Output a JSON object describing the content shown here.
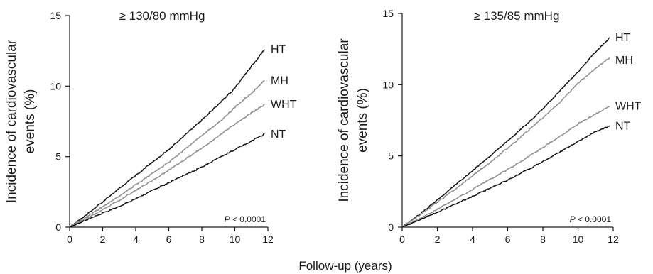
{
  "figure": {
    "xlabel": "Follow-up (years)"
  },
  "chart_data": [
    {
      "type": "line",
      "title": "≥ 130/80 mmHg",
      "ylabel_lines": [
        "Incidence of cardiovascular",
        "events (%)"
      ],
      "xlim": [
        0,
        12
      ],
      "ylim": [
        0,
        15
      ],
      "xticks": [
        0,
        2,
        4,
        6,
        8,
        10,
        12
      ],
      "yticks": [
        0,
        5,
        10,
        15
      ],
      "grid": false,
      "annotation": {
        "prefix": "P",
        "rest": " < 0.0001"
      },
      "series": [
        {
          "name": "HT",
          "color": "#111111",
          "x": [
            0,
            1,
            2,
            3,
            4,
            5,
            6,
            7,
            8,
            9,
            10,
            11,
            11.8
          ],
          "y": [
            0,
            0.85,
            1.8,
            2.75,
            3.65,
            4.6,
            5.5,
            6.55,
            7.6,
            8.7,
            9.85,
            11.4,
            12.6
          ]
        },
        {
          "name": "MH",
          "color": "#8c8c8c",
          "x": [
            0,
            1,
            2,
            3,
            4,
            5,
            6,
            7,
            8,
            9,
            10,
            11,
            11.8
          ],
          "y": [
            0,
            0.7,
            1.45,
            2.2,
            3.0,
            3.8,
            4.6,
            5.55,
            6.5,
            7.4,
            8.5,
            9.5,
            10.4
          ]
        },
        {
          "name": "WHT",
          "color": "#8c8c8c",
          "x": [
            0,
            1,
            2,
            3,
            4,
            5,
            6,
            7,
            8,
            9,
            10,
            11,
            11.8
          ],
          "y": [
            0,
            0.6,
            1.25,
            1.9,
            2.6,
            3.3,
            4.05,
            4.8,
            5.6,
            6.45,
            7.3,
            8.1,
            8.7
          ]
        },
        {
          "name": "NT",
          "color": "#111111",
          "x": [
            0,
            1,
            2,
            3,
            4,
            5,
            6,
            7,
            8,
            9,
            10,
            11,
            11.8
          ],
          "y": [
            0,
            0.5,
            1.0,
            1.45,
            2.0,
            2.6,
            3.15,
            3.7,
            4.25,
            4.9,
            5.5,
            6.1,
            6.6
          ]
        }
      ]
    },
    {
      "type": "line",
      "title": "≥ 135/85 mmHg",
      "ylabel_lines": [
        "Incidence of cardiovascular",
        "events (%)"
      ],
      "xlim": [
        0,
        12
      ],
      "ylim": [
        0,
        15
      ],
      "xticks": [
        0,
        2,
        4,
        6,
        8,
        10,
        12
      ],
      "yticks": [
        0,
        5,
        10,
        15
      ],
      "grid": false,
      "annotation": {
        "prefix": "P",
        "rest": " < 0.0001"
      },
      "series": [
        {
          "name": "HT",
          "color": "#111111",
          "x": [
            0,
            1,
            2,
            3,
            4,
            5,
            6,
            7,
            8,
            9,
            10,
            11,
            11.8
          ],
          "y": [
            0,
            0.9,
            1.9,
            2.95,
            3.95,
            5.0,
            6.05,
            7.15,
            8.3,
            9.6,
            10.9,
            12.3,
            13.3
          ]
        },
        {
          "name": "MH",
          "color": "#8c8c8c",
          "x": [
            0,
            1,
            2,
            3,
            4,
            5,
            6,
            7,
            8,
            9,
            10,
            11,
            11.8
          ],
          "y": [
            0,
            0.85,
            1.75,
            2.65,
            3.6,
            4.55,
            5.55,
            6.6,
            7.7,
            8.8,
            10.1,
            11.15,
            11.9
          ]
        },
        {
          "name": "WHT",
          "color": "#8c8c8c",
          "x": [
            0,
            1,
            2,
            3,
            4,
            5,
            6,
            7,
            8,
            9,
            10,
            11,
            11.8
          ],
          "y": [
            0,
            0.6,
            1.25,
            1.95,
            2.65,
            3.35,
            4.05,
            4.8,
            5.6,
            6.4,
            7.25,
            7.95,
            8.5
          ]
        },
        {
          "name": "NT",
          "color": "#111111",
          "x": [
            0,
            1,
            2,
            3,
            4,
            5,
            6,
            7,
            8,
            9,
            10,
            11,
            11.8
          ],
          "y": [
            0,
            0.5,
            1.05,
            1.6,
            2.15,
            2.75,
            3.3,
            3.95,
            4.6,
            5.3,
            6.0,
            6.7,
            7.1
          ]
        }
      ]
    }
  ]
}
